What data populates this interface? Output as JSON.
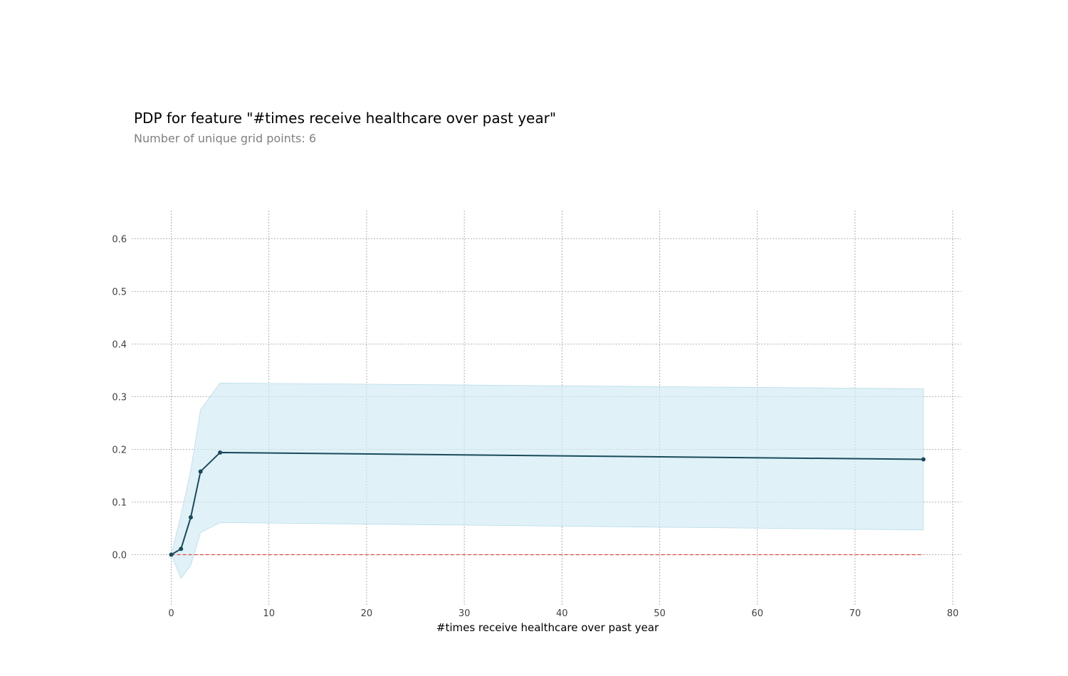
{
  "chart_data": {
    "type": "line",
    "title": "PDP for feature \"#times receive healthcare over past year\"",
    "subtitle": "Number of unique grid points: 6",
    "xlabel": "#times receive healthcare over past year",
    "ylabel": "",
    "xlim": [
      -4,
      81
    ],
    "ylim": [
      -0.09,
      0.65
    ],
    "xticks": [
      0,
      10,
      20,
      30,
      40,
      50,
      60,
      70,
      80
    ],
    "yticks": [
      0.0,
      0.1,
      0.2,
      0.3,
      0.4,
      0.5,
      0.6
    ],
    "xtick_labels": [
      "0",
      "10",
      "20",
      "30",
      "40",
      "50",
      "60",
      "70",
      "80"
    ],
    "ytick_labels": [
      "0.0",
      "0.1",
      "0.2",
      "0.3",
      "0.4",
      "0.5",
      "0.6"
    ],
    "grid": true,
    "series": [
      {
        "x": [
          0,
          1,
          2,
          3,
          5,
          77
        ],
        "y": [
          0.0,
          0.011,
          0.071,
          0.158,
          0.194,
          0.181
        ],
        "upper": [
          0.0,
          0.075,
          0.16,
          0.275,
          0.326,
          0.315
        ],
        "lower": [
          0.0,
          -0.045,
          -0.02,
          0.042,
          0.061,
          0.047
        ],
        "color": "#1a4b5c",
        "band_color": "#cfe9f3"
      }
    ],
    "baseline": {
      "y": 0.0,
      "x_range": [
        0,
        77
      ],
      "color": "#e8453c"
    }
  }
}
